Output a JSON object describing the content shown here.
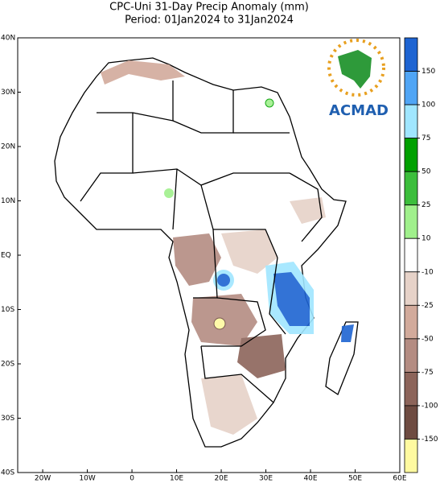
{
  "header": {
    "title": "CPC-Uni 31-Day Precip Anomaly (mm)",
    "subtitle": "Period: 01Jan2024 to 31Jan2024"
  },
  "map": {
    "lonlim": [
      -25.6,
      60
    ],
    "latlim": [
      -40,
      40
    ],
    "lon_ticks": [
      {
        "value": -20,
        "label": "20W"
      },
      {
        "value": -10,
        "label": "10W"
      },
      0,
      {
        "value": 10,
        "label": "10E"
      },
      {
        "value": 20,
        "label": "20E"
      },
      {
        "value": 30,
        "label": "30E"
      },
      {
        "value": 40,
        "label": "40E"
      },
      {
        "value": 50,
        "label": "50E"
      },
      {
        "value": 60,
        "label": "60E"
      }
    ],
    "lat_ticks": [
      {
        "value": 40,
        "label": "40N"
      },
      {
        "value": 30,
        "label": "30N"
      },
      {
        "value": 20,
        "label": "20N"
      },
      {
        "value": 10,
        "label": "10N"
      },
      {
        "value": 0,
        "label": "EQ"
      },
      {
        "value": -10,
        "label": "10S"
      },
      {
        "value": -20,
        "label": "20S"
      },
      {
        "value": -30,
        "label": "30S"
      },
      {
        "value": -40,
        "label": "40S"
      }
    ]
  },
  "colorbar": {
    "levels": [
      150,
      100,
      75,
      50,
      25,
      10,
      -10,
      -25,
      -50,
      -75,
      -100,
      -150
    ],
    "colors": [
      "#1e64d2",
      "#50a5f5",
      "#a0e6ff",
      "#00a000",
      "#3cbe3c",
      "#a0f08c",
      "#ffffff",
      "#e6d2c8",
      "#d2aa9b",
      "#b48c82",
      "#8c645a",
      "#6e4b41",
      "#fffaa0"
    ]
  },
  "logo": {
    "text": "ACMAD"
  }
}
